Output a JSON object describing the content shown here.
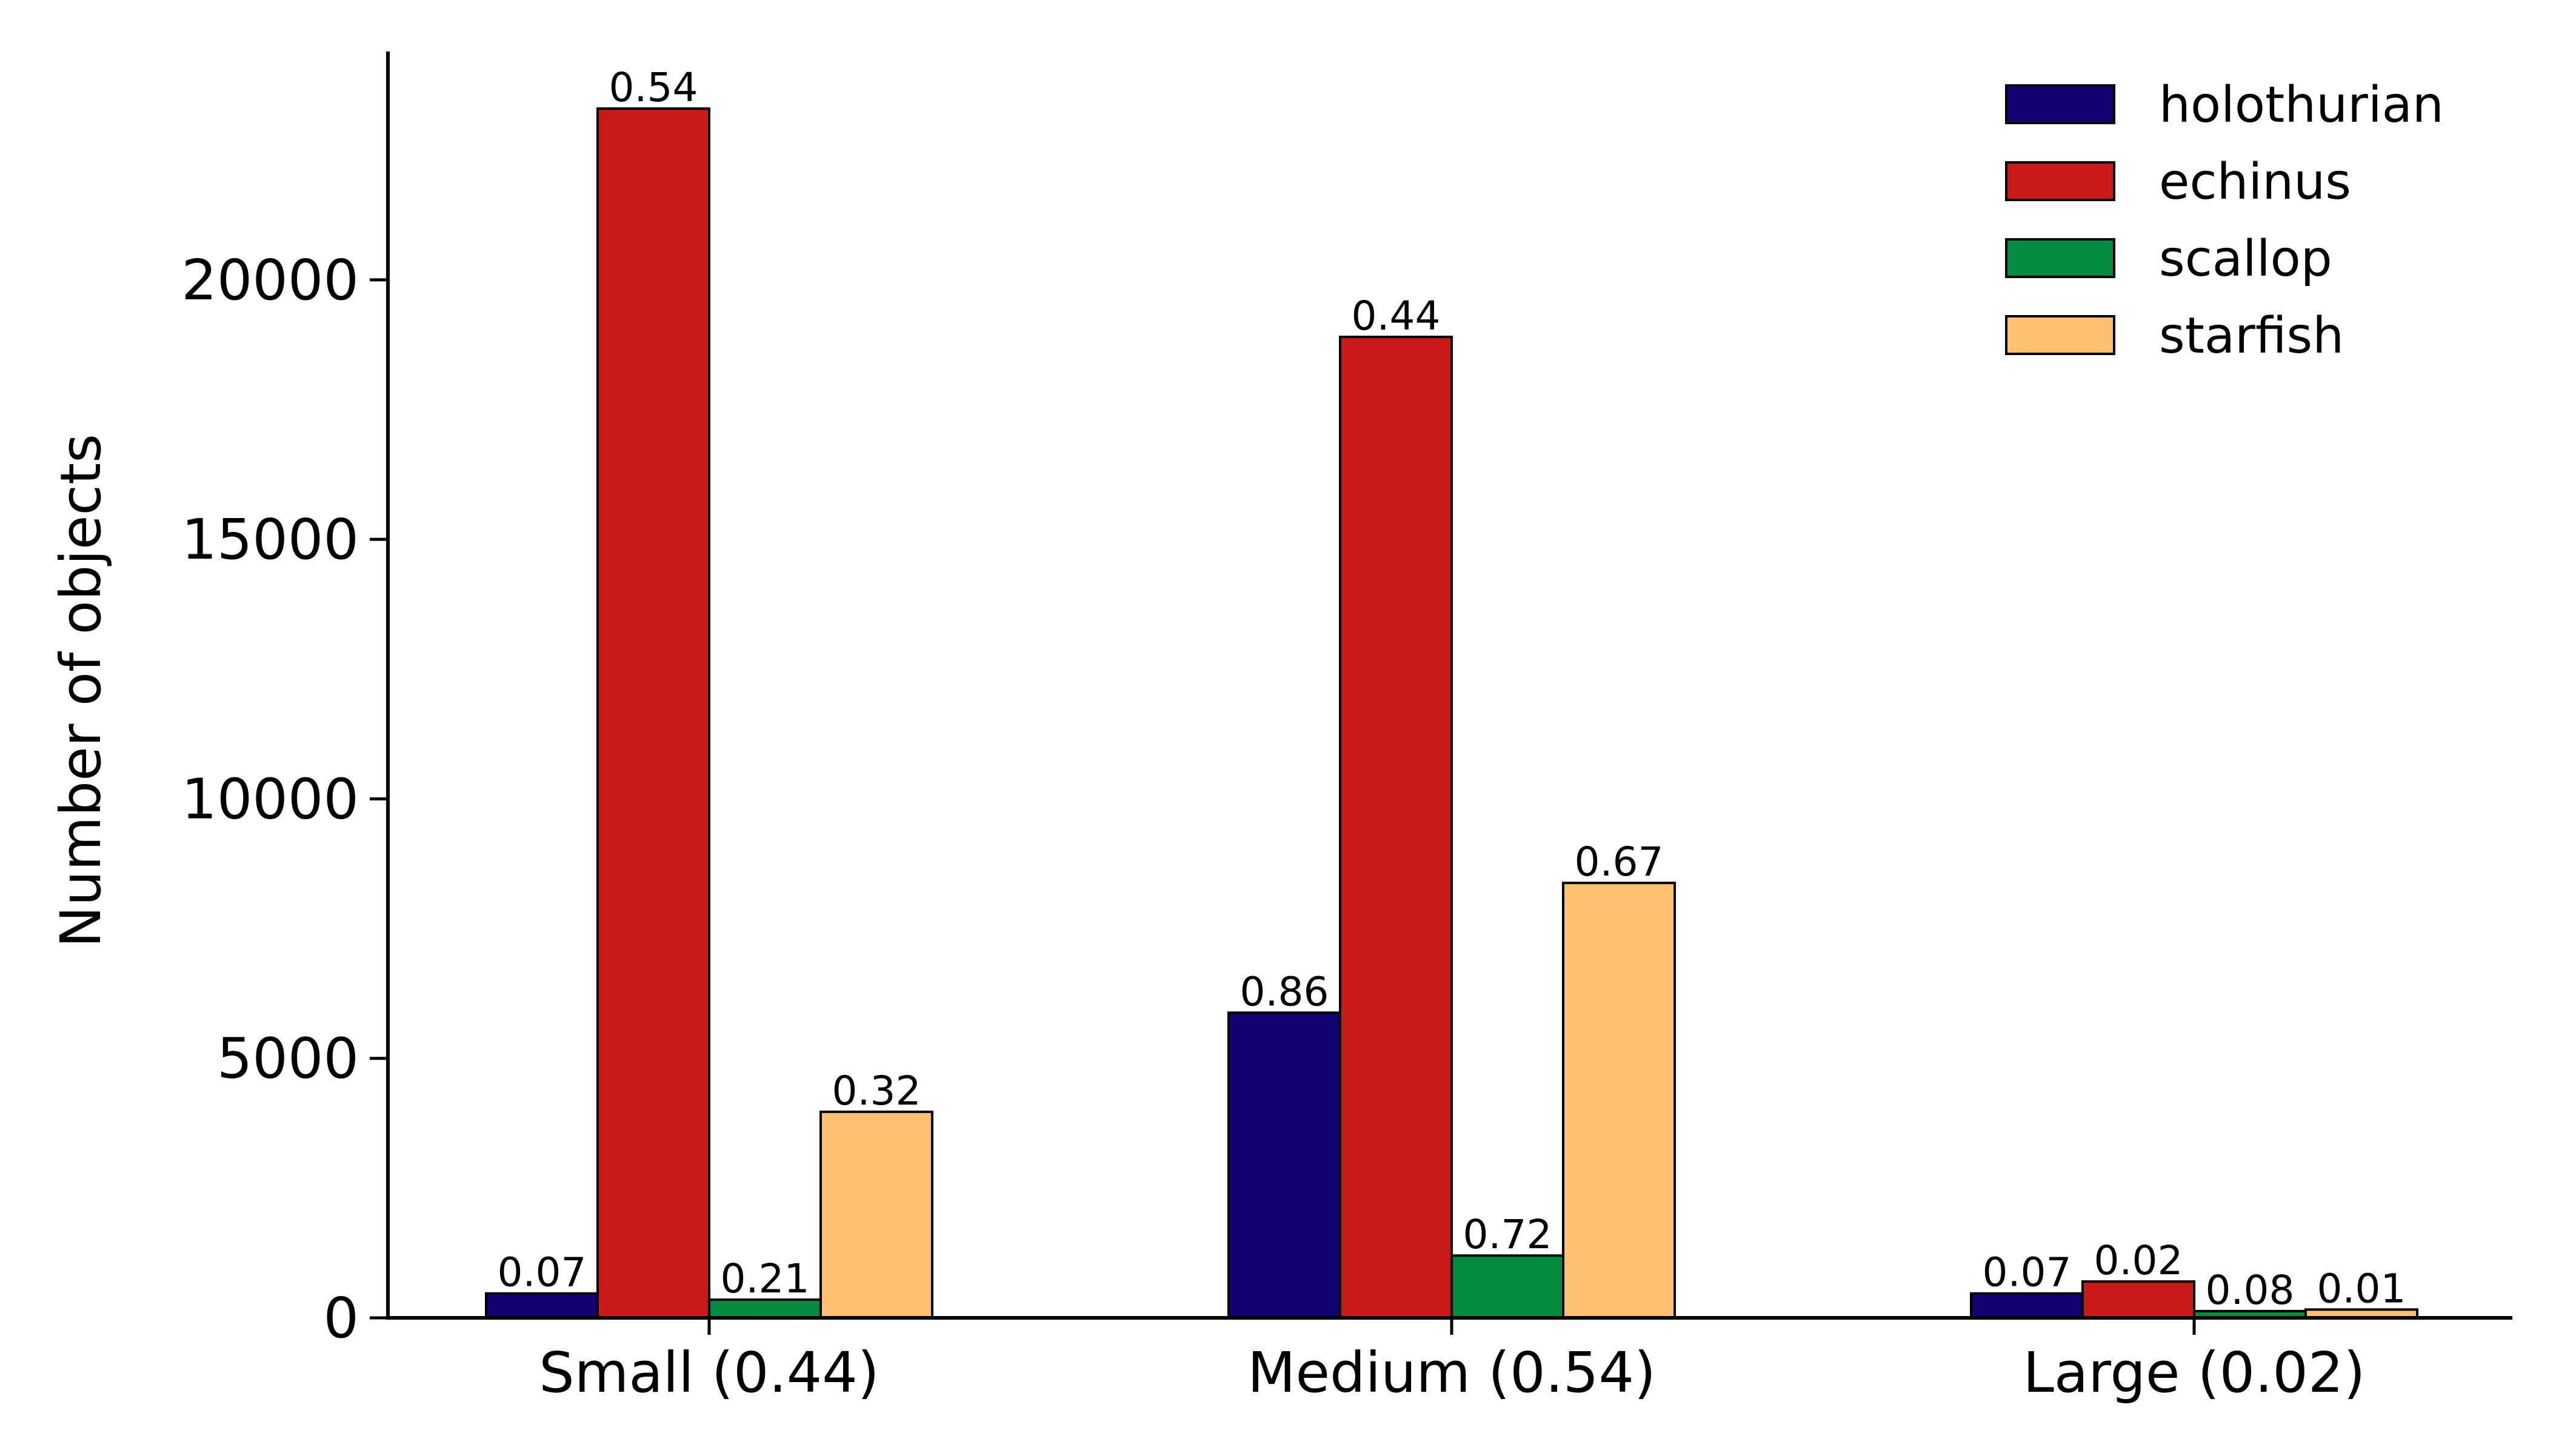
{
  "chart_data": {
    "type": "bar",
    "title": "",
    "xlabel": "",
    "ylabel": "Number of objects",
    "ylim": [
      0,
      24400
    ],
    "yticks": [
      0,
      5000,
      10000,
      15000,
      20000
    ],
    "grid": false,
    "legend_position": "top-right",
    "categories": [
      "Small (0.44)",
      "Medium (0.54)",
      "Large (0.02)"
    ],
    "series": [
      {
        "name": "holothurian",
        "color": "#140070",
        "values": [
          470,
          5880,
          470
        ],
        "labels": [
          "0.07",
          "0.86",
          "0.07"
        ]
      },
      {
        "name": "echinus",
        "color": "#c8191b",
        "values": [
          23300,
          18900,
          700
        ],
        "labels": [
          "0.54",
          "0.44",
          "0.02"
        ]
      },
      {
        "name": "scallop",
        "color": "#008b40",
        "values": [
          350,
          1200,
          130
        ],
        "labels": [
          "0.21",
          "0.72",
          "0.08"
        ]
      },
      {
        "name": "starfish",
        "color": "#fdbf70",
        "values": [
          3970,
          8380,
          160
        ],
        "labels": [
          "0.32",
          "0.67",
          "0.01"
        ]
      }
    ]
  }
}
